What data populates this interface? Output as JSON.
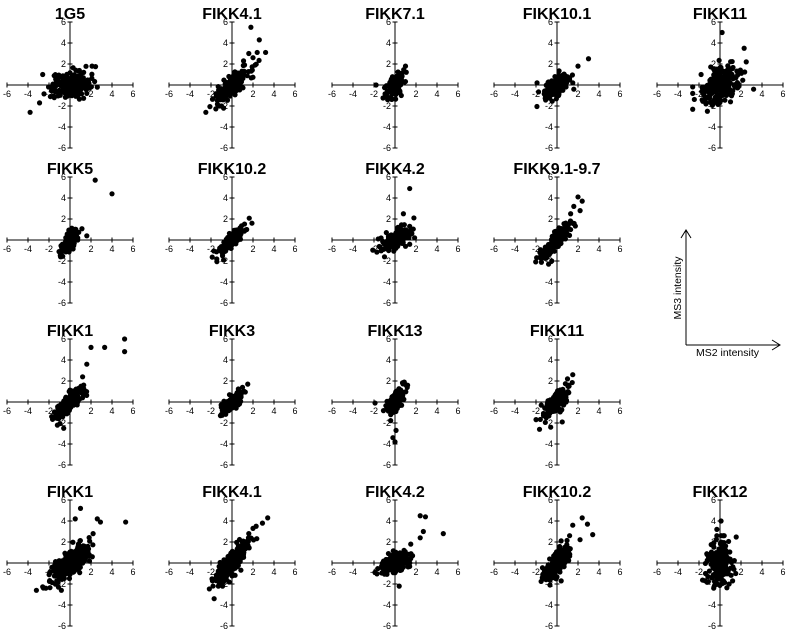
{
  "chart_data": {
    "type": "scatter",
    "axis_range": [
      -6,
      6
    ],
    "ticks": [
      -6,
      -4,
      -2,
      2,
      4,
      6
    ],
    "grid": false,
    "key": {
      "x_label": "MS2 intensity",
      "y_label": "MS3 intensity"
    },
    "panels": [
      {
        "title": "1G5",
        "row": 0,
        "col": 0,
        "points": [
          [
            -3.8,
            -2.6
          ],
          [
            -2.9,
            -1.7
          ],
          [
            2.1,
            1.8
          ],
          [
            1.6,
            -0.8
          ],
          [
            -2.6,
            1.0
          ],
          [
            2.6,
            -0.2
          ],
          [
            1.3,
            1.2
          ],
          [
            -1.5,
            -1.2
          ]
        ],
        "cluster": {
          "sx": 0.9,
          "sy": 0.6,
          "rho": 0.2,
          "n": 220
        }
      },
      {
        "title": "FIKK4.1",
        "row": 0,
        "col": 1,
        "points": [
          [
            1.8,
            5.5
          ],
          [
            2.6,
            4.3
          ],
          [
            3.2,
            3.1
          ],
          [
            2.4,
            3.1
          ],
          [
            2.0,
            2.6
          ],
          [
            1.6,
            3.0
          ],
          [
            2.2,
            1.9
          ],
          [
            1.1,
            2.3
          ],
          [
            -1.0,
            -2.0
          ],
          [
            -0.8,
            -2.2
          ]
        ],
        "cluster": {
          "sx": 0.8,
          "sy": 0.8,
          "rho": 0.8,
          "n": 200
        }
      },
      {
        "title": "FIKK7.1",
        "row": 0,
        "col": 2,
        "points": [
          [
            -1.8,
            0.0
          ],
          [
            1.0,
            1.8
          ],
          [
            -0.7,
            -1.4
          ],
          [
            0.6,
            -1.0
          ]
        ],
        "cluster": {
          "sx": 0.4,
          "sy": 0.6,
          "rho": 0.5,
          "n": 120
        }
      },
      {
        "title": "FIKK10.1",
        "row": 0,
        "col": 3,
        "points": [
          [
            3.0,
            2.5
          ],
          [
            2.0,
            1.8
          ],
          [
            -1.9,
            0.2
          ],
          [
            1.5,
            0.2
          ],
          [
            1.6,
            -0.4
          ]
        ],
        "cluster": {
          "sx": 0.6,
          "sy": 0.6,
          "rho": 0.6,
          "n": 150
        }
      },
      {
        "title": "FIKK11",
        "row": 0,
        "col": 4,
        "points": [
          [
            0.2,
            5.0
          ],
          [
            2.3,
            3.5
          ],
          [
            2.5,
            2.2
          ],
          [
            -2.6,
            -0.8
          ],
          [
            -1.2,
            -2.5
          ],
          [
            1.0,
            -1.6
          ],
          [
            3.2,
            -0.4
          ],
          [
            -1.8,
            1.0
          ]
        ],
        "cluster": {
          "sx": 0.9,
          "sy": 0.9,
          "rho": 0.4,
          "n": 230
        }
      },
      {
        "title": "FIKK5",
        "row": 1,
        "col": 0,
        "points": [
          [
            2.4,
            5.7
          ],
          [
            4.0,
            4.4
          ],
          [
            1.6,
            0.4
          ],
          [
            -0.9,
            -1.6
          ]
        ],
        "cluster": {
          "sx": 0.4,
          "sy": 0.6,
          "rho": 0.6,
          "n": 110
        }
      },
      {
        "title": "FIKK10.2",
        "row": 1,
        "col": 1,
        "points": [
          [
            1.9,
            1.6
          ],
          [
            1.4,
            1.0
          ],
          [
            -0.8,
            -1.9
          ],
          [
            -0.9,
            -1.5
          ]
        ],
        "cluster": {
          "sx": 0.6,
          "sy": 0.6,
          "rho": 0.85,
          "n": 160
        }
      },
      {
        "title": "FIKK4.2",
        "row": 1,
        "col": 2,
        "points": [
          [
            1.4,
            4.9
          ],
          [
            0.8,
            2.5
          ],
          [
            1.8,
            2.1
          ],
          [
            1.4,
            1.3
          ],
          [
            -1.6,
            0.1
          ],
          [
            -1.0,
            -1.6
          ],
          [
            1.0,
            -0.6
          ]
        ],
        "cluster": {
          "sx": 0.7,
          "sy": 0.5,
          "rho": 0.6,
          "n": 170
        }
      },
      {
        "title": "FIKK9.1-9.7",
        "row": 1,
        "col": 3,
        "points": [
          [
            2.0,
            4.1
          ],
          [
            2.4,
            3.7
          ],
          [
            1.6,
            3.2
          ],
          [
            2.2,
            2.8
          ],
          [
            1.3,
            2.5
          ],
          [
            -0.5,
            -2.0
          ],
          [
            -0.8,
            -2.3
          ]
        ],
        "cluster": {
          "sx": 0.7,
          "sy": 0.8,
          "rho": 0.85,
          "n": 180
        }
      },
      {
        "title": "FIKK1",
        "row": 2,
        "col": 0,
        "points": [
          [
            5.2,
            6.0
          ],
          [
            5.2,
            4.8
          ],
          [
            3.3,
            5.2
          ],
          [
            2.0,
            5.2
          ],
          [
            1.6,
            3.6
          ],
          [
            1.2,
            2.4
          ],
          [
            -1.2,
            -2.2
          ],
          [
            -0.6,
            -2.5
          ]
        ],
        "cluster": {
          "sx": 0.7,
          "sy": 0.7,
          "rho": 0.85,
          "n": 210
        }
      },
      {
        "title": "FIKK3",
        "row": 2,
        "col": 1,
        "points": [
          [
            1.5,
            1.7
          ],
          [
            1.0,
            1.4
          ],
          [
            -1.1,
            -1.3
          ]
        ],
        "cluster": {
          "sx": 0.5,
          "sy": 0.5,
          "rho": 0.8,
          "n": 170
        }
      },
      {
        "title": "FIKK13",
        "row": 2,
        "col": 2,
        "points": [
          [
            -1.9,
            -0.1
          ],
          [
            0.1,
            -2.7
          ],
          [
            0.0,
            -3.8
          ],
          [
            -0.2,
            -3.4
          ],
          [
            1.2,
            1.6
          ]
        ],
        "cluster": {
          "sx": 0.4,
          "sy": 0.7,
          "rho": 0.7,
          "n": 150
        }
      },
      {
        "title": "FIKK11",
        "row": 2,
        "col": 3,
        "points": [
          [
            1.5,
            2.6
          ],
          [
            1.0,
            2.2
          ],
          [
            -1.5,
            -0.3
          ],
          [
            -0.6,
            -2.4
          ],
          [
            0.5,
            -1.9
          ]
        ],
        "cluster": {
          "sx": 0.6,
          "sy": 0.8,
          "rho": 0.8,
          "n": 170
        }
      },
      {
        "title": "FIKK1",
        "row": 3,
        "col": 0,
        "points": [
          [
            5.3,
            3.9
          ],
          [
            2.9,
            3.9
          ],
          [
            2.6,
            4.2
          ],
          [
            1.0,
            5.2
          ],
          [
            0.5,
            4.2
          ],
          [
            2.2,
            2.8
          ],
          [
            -3.2,
            -2.6
          ],
          [
            -2.3,
            -2.4
          ],
          [
            -1.1,
            -2.3
          ]
        ],
        "cluster": {
          "sx": 1.0,
          "sy": 0.9,
          "rho": 0.75,
          "n": 280
        }
      },
      {
        "title": "FIKK4.1",
        "row": 3,
        "col": 1,
        "points": [
          [
            3.4,
            4.3
          ],
          [
            2.9,
            3.8
          ],
          [
            2.3,
            3.5
          ],
          [
            2.0,
            3.3
          ],
          [
            1.6,
            2.8
          ],
          [
            -1.7,
            -3.4
          ],
          [
            -1.3,
            -2.2
          ],
          [
            -0.9,
            -2.2
          ]
        ],
        "cluster": {
          "sx": 0.8,
          "sy": 1.0,
          "rho": 0.85,
          "n": 230
        }
      },
      {
        "title": "FIKK4.2",
        "row": 3,
        "col": 2,
        "points": [
          [
            2.4,
            4.5
          ],
          [
            2.9,
            4.4
          ],
          [
            4.6,
            2.8
          ],
          [
            2.7,
            3.0
          ],
          [
            2.4,
            2.4
          ],
          [
            1.5,
            1.8
          ],
          [
            0.4,
            -2.2
          ],
          [
            -1.2,
            -0.5
          ]
        ],
        "cluster": {
          "sx": 0.7,
          "sy": 0.5,
          "rho": 0.5,
          "n": 190
        }
      },
      {
        "title": "FIKK10.2",
        "row": 3,
        "col": 3,
        "points": [
          [
            2.4,
            4.3
          ],
          [
            2.9,
            3.7
          ],
          [
            3.4,
            2.7
          ],
          [
            1.5,
            3.6
          ],
          [
            1.2,
            2.6
          ],
          [
            -1.4,
            -1.4
          ],
          [
            -0.7,
            -1.5
          ],
          [
            0.4,
            -1.7
          ]
        ],
        "cluster": {
          "sx": 0.6,
          "sy": 0.8,
          "rho": 0.7,
          "n": 180
        }
      },
      {
        "title": "FIKK12",
        "row": 3,
        "col": 4,
        "points": [
          [
            0.1,
            4.0
          ],
          [
            -0.3,
            3.2
          ],
          [
            0.4,
            2.6
          ],
          [
            1.2,
            -1.7
          ],
          [
            -0.6,
            -2.4
          ],
          [
            1.5,
            -1.0
          ],
          [
            -1.0,
            0.8
          ]
        ],
        "cluster": {
          "sx": 0.6,
          "sy": 1.0,
          "rho": 0.2,
          "n": 190
        }
      }
    ]
  }
}
